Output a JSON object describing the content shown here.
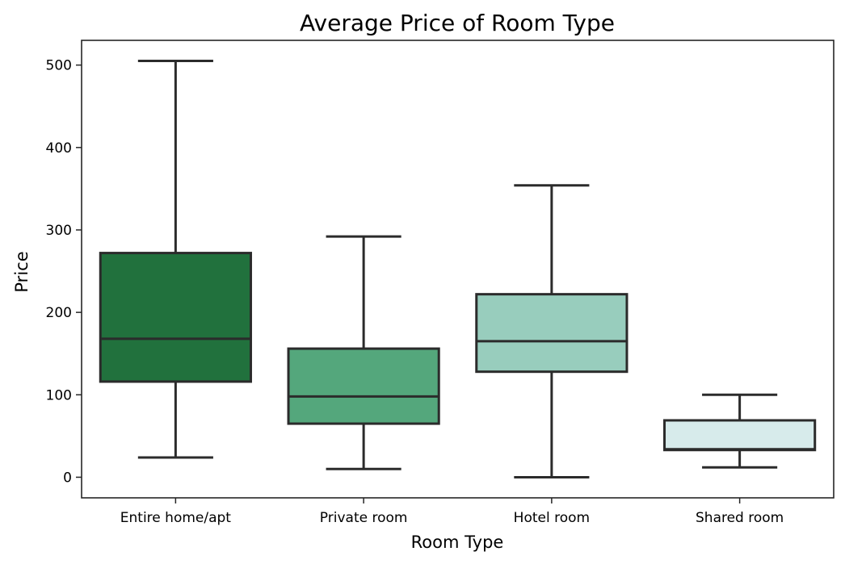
{
  "chart_data": {
    "type": "box",
    "title": "Average Price of Room Type",
    "xlabel": "Room Type",
    "ylabel": "Price",
    "ylim": [
      -25,
      530
    ],
    "yticks": [
      0,
      100,
      200,
      300,
      400,
      500
    ],
    "grid": false,
    "categories": [
      "Entire home/apt",
      "Private room",
      "Hotel room",
      "Shared room"
    ],
    "boxes": [
      {
        "category": "Entire home/apt",
        "whisker_low": 24,
        "q1": 116,
        "median": 168,
        "q3": 272,
        "whisker_high": 505,
        "color": "#21713d"
      },
      {
        "category": "Private room",
        "whisker_low": 10,
        "q1": 65,
        "median": 98,
        "q3": 156,
        "whisker_high": 292,
        "color": "#54a77c"
      },
      {
        "category": "Hotel room",
        "whisker_low": 0,
        "q1": 128,
        "median": 165,
        "q3": 222,
        "whisker_high": 354,
        "color": "#98cdbd"
      },
      {
        "category": "Shared room",
        "whisker_low": 12,
        "q1": 33,
        "median": 34,
        "q3": 69,
        "whisker_high": 100,
        "color": "#d7ebeb"
      }
    ]
  }
}
